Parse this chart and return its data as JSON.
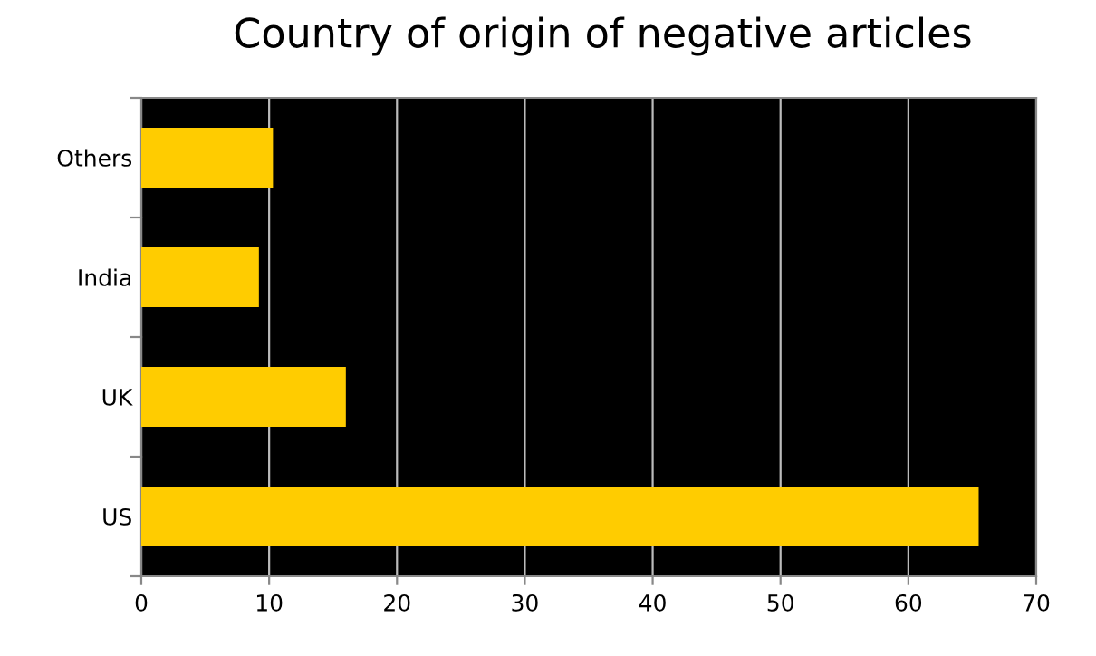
{
  "chart_data": {
    "type": "bar",
    "orientation": "horizontal",
    "title": "Country of origin of negative articles",
    "categories": [
      "Others",
      "India",
      "UK",
      "US"
    ],
    "values": [
      10.3,
      9.2,
      16,
      65.5
    ],
    "color": "#ffcc00",
    "xlim": [
      0,
      70
    ],
    "xticks": [
      0,
      10,
      20,
      30,
      40,
      50,
      60,
      70
    ],
    "grid": "x"
  }
}
